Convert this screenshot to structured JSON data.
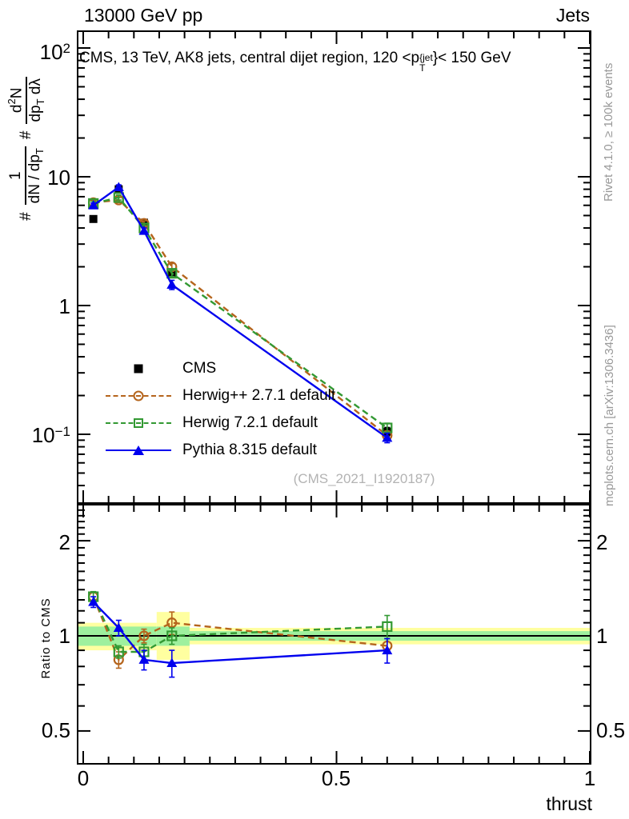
{
  "header": {
    "left": "13000 GeV pp",
    "right": "Jets"
  },
  "title": {
    "pre": "CMS, 13 TeV, AK8 jets, central dijet region, 120 <p",
    "stack_top": "{jet",
    "stack_bottom": "T",
    "post": "}< 150 GeV"
  },
  "ylabel": {
    "hash1": "#",
    "f1_num": "1",
    "f1_den_pre": "dN / dp",
    "f1_den_sub": "T",
    "hash2": "#",
    "f2_num_pre": "d",
    "f2_num_sup": "2",
    "f2_num_post": "N",
    "f2_den_pre": "dp",
    "f2_den_sub": "T",
    "f2_den_post": " dλ"
  },
  "axis": {
    "main_y_ticks": [
      {
        "base": "10",
        "sup": "2"
      },
      {
        "base": "10",
        "sup": ""
      },
      {
        "base": "1",
        "sup": ""
      },
      {
        "base": "10",
        "sup": "−1"
      }
    ],
    "ratio_y_ticks": [
      "2",
      "1",
      "0.5"
    ],
    "x_ticks": [
      "0",
      "0.5",
      "1"
    ],
    "xlabel": "thrust",
    "ratio_ylabel": "Ratio to CMS"
  },
  "legend": [
    {
      "label": "CMS"
    },
    {
      "label": "Herwig++ 2.7.1 default"
    },
    {
      "label": "Herwig 7.2.1 default"
    },
    {
      "label": "Pythia 8.315 default"
    }
  ],
  "watermark": "(CMS_2021_I1920187)",
  "side_notes": {
    "top": "Rivet 4.1.0, ≥ 100k events",
    "bottom": "mcplots.cern.ch [arXiv:1306.3436]"
  },
  "colors": {
    "cms": "#000000",
    "herwigpp": "#b5651d",
    "herwig7": "#339933",
    "pythia": "#0000ee",
    "band_yellow": "#ffffa0",
    "band_green": "#9ef09e"
  },
  "chart_data": {
    "type": "line",
    "title": "CMS, 13 TeV, AK8 jets, central dijet region, 120 < pT{jet} < 150 GeV",
    "xlabel": "thrust",
    "ylabel": "# 1/(dN/dpT) # d²N/(dpT dλ)",
    "x": [
      0.02,
      0.07,
      0.12,
      0.175,
      0.6
    ],
    "main": {
      "ylog": true,
      "ylim": [
        0.03,
        137
      ],
      "xlim": [
        0,
        1
      ],
      "grid": false,
      "legend_position": "center-left",
      "series": [
        {
          "name": "CMS",
          "color": "#000000",
          "marker": "square_filled",
          "line": "none",
          "values": [
            4.7,
            8.0,
            4.4,
            1.8,
            0.105
          ],
          "yerr": [
            0.2,
            0.3,
            0.18,
            0.08,
            0.008
          ]
        },
        {
          "name": "Herwig++ 2.7.1 default",
          "color": "#b5651d",
          "marker": "circle_open",
          "line": "dashed",
          "values": [
            6.3,
            6.6,
            4.35,
            2.0,
            0.098
          ],
          "yerr": [
            0.25,
            0.3,
            0.2,
            0.12,
            0.008
          ]
        },
        {
          "name": "Herwig 7.2.1 default",
          "color": "#339933",
          "marker": "square_open",
          "line": "dashed",
          "values": [
            6.2,
            6.9,
            4.0,
            1.78,
            0.112
          ],
          "yerr": [
            0.25,
            0.3,
            0.2,
            0.1,
            0.01
          ]
        },
        {
          "name": "Pythia 8.315 default",
          "color": "#0000ee",
          "marker": "triangle_filled",
          "line": "solid",
          "values": [
            6.0,
            8.3,
            3.8,
            1.45,
            0.094
          ],
          "yerr": [
            0.25,
            0.35,
            0.2,
            0.12,
            0.008
          ]
        }
      ]
    },
    "ratio": {
      "ylog": true,
      "ylim": [
        0.394,
        2.6
      ],
      "reference": 1,
      "series": [
        {
          "name": "Herwig++ 2.7.1 default",
          "color": "#b5651d",
          "marker": "circle_open",
          "line": "dashed",
          "values": [
            1.33,
            0.84,
            1.0,
            1.1,
            0.93
          ],
          "yerr": [
            0.05,
            0.05,
            0.05,
            0.09,
            0.05
          ]
        },
        {
          "name": "Herwig 7.2.1 default",
          "color": "#339933",
          "marker": "square_open",
          "line": "dashed",
          "values": [
            1.33,
            0.89,
            0.89,
            1.0,
            1.07
          ],
          "yerr": [
            0.05,
            0.04,
            0.05,
            0.06,
            0.09
          ]
        },
        {
          "name": "Pythia 8.315 default",
          "color": "#0000ee",
          "marker": "triangle_filled",
          "line": "solid",
          "values": [
            1.28,
            1.06,
            0.84,
            0.82,
            0.9
          ],
          "yerr": [
            0.05,
            0.06,
            0.06,
            0.08,
            0.08
          ]
        }
      ],
      "bands": [
        {
          "x0": 0.0,
          "x1": 0.145,
          "yellow": [
            0.9,
            1.1
          ],
          "green": [
            0.93,
            1.07
          ]
        },
        {
          "x0": 0.145,
          "x1": 0.21,
          "yellow": [
            0.84,
            1.19
          ],
          "green": [
            0.93,
            1.07
          ]
        },
        {
          "x0": 0.21,
          "x1": 1.0,
          "yellow": [
            0.94,
            1.06
          ],
          "green": [
            0.965,
            1.035
          ]
        }
      ]
    }
  }
}
